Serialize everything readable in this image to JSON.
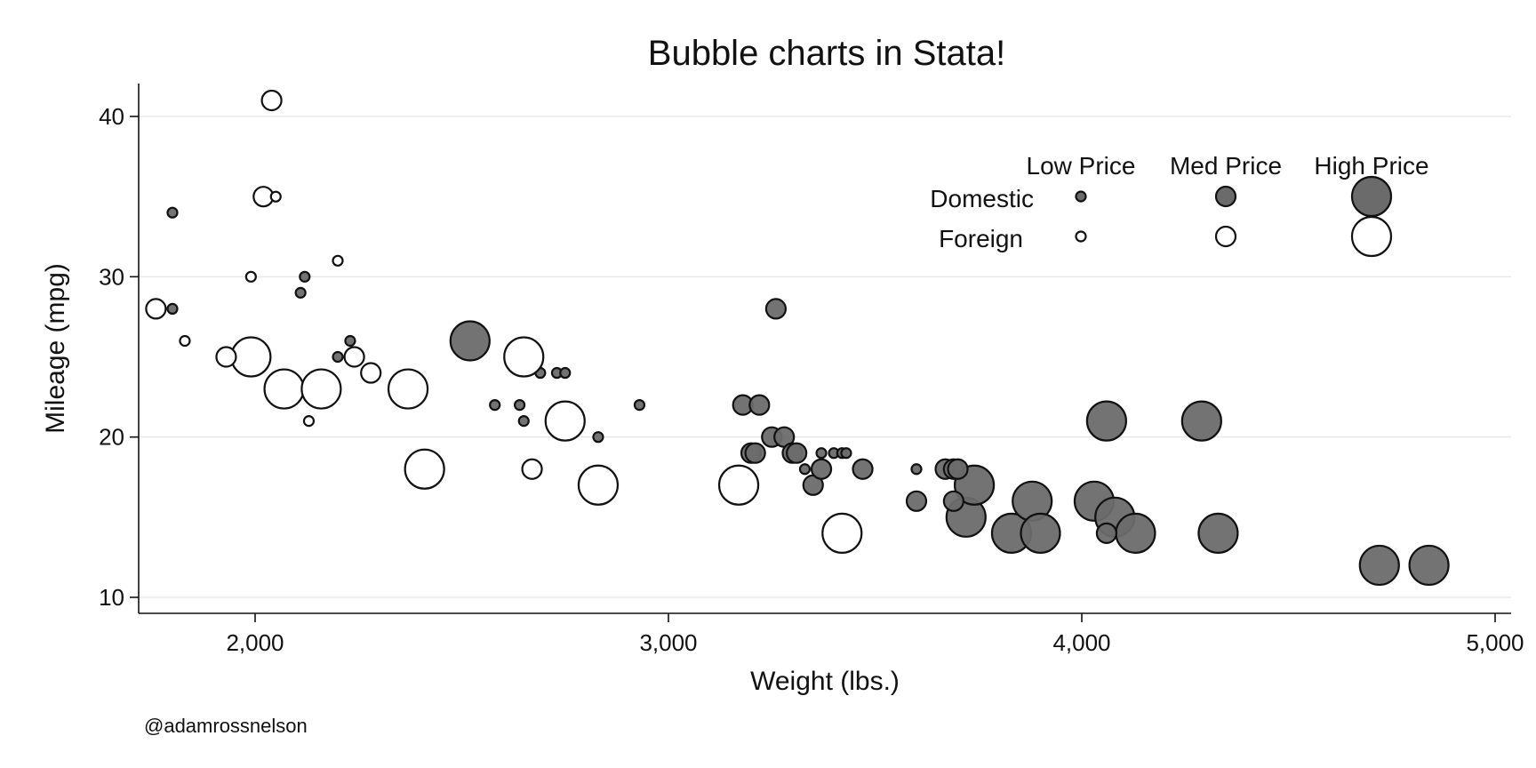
{
  "chart_data": {
    "type": "scatter",
    "subtype": "bubble",
    "title": "Bubble charts in Stata!",
    "xlabel": "Weight (lbs.)",
    "ylabel": "Mileage (mpg)",
    "xlim": [
      1720,
      5060
    ],
    "ylim": [
      9,
      42
    ],
    "xticks": [
      2000,
      3000,
      4000,
      5000
    ],
    "xtick_labels": [
      "2,000",
      "3,000",
      "4,000",
      "5,000"
    ],
    "yticks": [
      10,
      20,
      30,
      40
    ],
    "ytick_labels": [
      "10",
      "20",
      "30",
      "40"
    ],
    "grid": "horizontal",
    "legend": {
      "placement": "top-right",
      "columns": [
        "Low Price",
        "Med Price",
        "High Price"
      ],
      "rows": [
        "Domestic",
        "Foreign"
      ]
    },
    "size_categories": [
      "Low Price",
      "Med Price",
      "High Price"
    ],
    "series": [
      {
        "name": "Domestic",
        "fill": "#6b6b6b",
        "stroke": "#111111",
        "points": [
          {
            "x": 1800,
            "y": 34,
            "size": "Low Price"
          },
          {
            "x": 1800,
            "y": 28,
            "size": "Low Price"
          },
          {
            "x": 2110,
            "y": 29,
            "size": "Low Price"
          },
          {
            "x": 2120,
            "y": 30,
            "size": "Low Price"
          },
          {
            "x": 2200,
            "y": 25,
            "size": "Low Price"
          },
          {
            "x": 2230,
            "y": 26,
            "size": "Low Price"
          },
          {
            "x": 2520,
            "y": 26,
            "size": "High Price"
          },
          {
            "x": 2580,
            "y": 22,
            "size": "Low Price"
          },
          {
            "x": 2640,
            "y": 22,
            "size": "Low Price"
          },
          {
            "x": 2650,
            "y": 21,
            "size": "Low Price"
          },
          {
            "x": 2690,
            "y": 24,
            "size": "Low Price"
          },
          {
            "x": 2730,
            "y": 24,
            "size": "Low Price"
          },
          {
            "x": 2750,
            "y": 24,
            "size": "Low Price"
          },
          {
            "x": 2830,
            "y": 20,
            "size": "Low Price"
          },
          {
            "x": 2930,
            "y": 22,
            "size": "Low Price"
          },
          {
            "x": 3180,
            "y": 22,
            "size": "Med Price"
          },
          {
            "x": 3200,
            "y": 19,
            "size": "Med Price"
          },
          {
            "x": 3210,
            "y": 19,
            "size": "Med Price"
          },
          {
            "x": 3220,
            "y": 22,
            "size": "Med Price"
          },
          {
            "x": 3250,
            "y": 20,
            "size": "Med Price"
          },
          {
            "x": 3260,
            "y": 28,
            "size": "Med Price"
          },
          {
            "x": 3280,
            "y": 20,
            "size": "Med Price"
          },
          {
            "x": 3300,
            "y": 19,
            "size": "Med Price"
          },
          {
            "x": 3310,
            "y": 19,
            "size": "Med Price"
          },
          {
            "x": 3330,
            "y": 18,
            "size": "Low Price"
          },
          {
            "x": 3350,
            "y": 17,
            "size": "Med Price"
          },
          {
            "x": 3370,
            "y": 18,
            "size": "Med Price"
          },
          {
            "x": 3370,
            "y": 19,
            "size": "Low Price"
          },
          {
            "x": 3400,
            "y": 19,
            "size": "Low Price"
          },
          {
            "x": 3420,
            "y": 19,
            "size": "Low Price"
          },
          {
            "x": 3430,
            "y": 19,
            "size": "Low Price"
          },
          {
            "x": 3470,
            "y": 18,
            "size": "Med Price"
          },
          {
            "x": 3600,
            "y": 16,
            "size": "Med Price"
          },
          {
            "x": 3600,
            "y": 18,
            "size": "Low Price"
          },
          {
            "x": 3670,
            "y": 18,
            "size": "Med Price"
          },
          {
            "x": 3690,
            "y": 16,
            "size": "Med Price"
          },
          {
            "x": 3690,
            "y": 18,
            "size": "Med Price"
          },
          {
            "x": 3700,
            "y": 18,
            "size": "Med Price"
          },
          {
            "x": 3720,
            "y": 15,
            "size": "High Price"
          },
          {
            "x": 3740,
            "y": 17,
            "size": "High Price"
          },
          {
            "x": 3830,
            "y": 14,
            "size": "High Price"
          },
          {
            "x": 3880,
            "y": 16,
            "size": "High Price"
          },
          {
            "x": 3900,
            "y": 14,
            "size": "High Price"
          },
          {
            "x": 4030,
            "y": 16,
            "size": "High Price"
          },
          {
            "x": 4060,
            "y": 14,
            "size": "Med Price"
          },
          {
            "x": 4060,
            "y": 21,
            "size": "High Price"
          },
          {
            "x": 4080,
            "y": 15,
            "size": "High Price"
          },
          {
            "x": 4130,
            "y": 14,
            "size": "High Price"
          },
          {
            "x": 4290,
            "y": 21,
            "size": "High Price"
          },
          {
            "x": 4330,
            "y": 14,
            "size": "High Price"
          },
          {
            "x": 4720,
            "y": 12,
            "size": "High Price"
          },
          {
            "x": 4840,
            "y": 12,
            "size": "High Price"
          }
        ]
      },
      {
        "name": "Foreign",
        "fill": "#ffffff",
        "stroke": "#111111",
        "points": [
          {
            "x": 1760,
            "y": 28,
            "size": "Med Price"
          },
          {
            "x": 1830,
            "y": 26,
            "size": "Low Price"
          },
          {
            "x": 1930,
            "y": 25,
            "size": "Med Price"
          },
          {
            "x": 1990,
            "y": 25,
            "size": "High Price"
          },
          {
            "x": 1990,
            "y": 30,
            "size": "Low Price"
          },
          {
            "x": 2020,
            "y": 35,
            "size": "Med Price"
          },
          {
            "x": 2040,
            "y": 41,
            "size": "Med Price"
          },
          {
            "x": 2050,
            "y": 35,
            "size": "Low Price"
          },
          {
            "x": 2070,
            "y": 23,
            "size": "High Price"
          },
          {
            "x": 2130,
            "y": 21,
            "size": "Low Price"
          },
          {
            "x": 2160,
            "y": 23,
            "size": "High Price"
          },
          {
            "x": 2200,
            "y": 31,
            "size": "Low Price"
          },
          {
            "x": 2240,
            "y": 25,
            "size": "Med Price"
          },
          {
            "x": 2280,
            "y": 24,
            "size": "Med Price"
          },
          {
            "x": 2370,
            "y": 23,
            "size": "High Price"
          },
          {
            "x": 2410,
            "y": 18,
            "size": "High Price"
          },
          {
            "x": 2650,
            "y": 25,
            "size": "High Price"
          },
          {
            "x": 2670,
            "y": 18,
            "size": "Med Price"
          },
          {
            "x": 2750,
            "y": 21,
            "size": "High Price"
          },
          {
            "x": 2830,
            "y": 17,
            "size": "High Price"
          },
          {
            "x": 3170,
            "y": 17,
            "size": "High Price"
          },
          {
            "x": 3420,
            "y": 14,
            "size": "High Price"
          }
        ]
      }
    ]
  },
  "credit": "@adamrossnelson"
}
